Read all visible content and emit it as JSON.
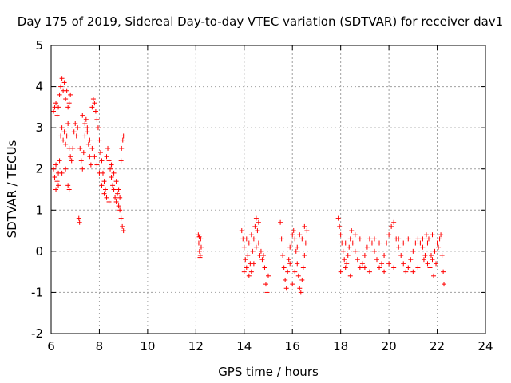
{
  "chart_data": {
    "type": "scatter",
    "title": "Day 175 of 2019, Sidereal Day-to-day VTEC variation (SDTVAR) for receiver dav1",
    "xlabel": "GPS time / hours",
    "ylabel": "SDTVAR / TECUs",
    "xlim": [
      6,
      24
    ],
    "ylim": [
      -2,
      5
    ],
    "xticks": [
      6,
      8,
      10,
      12,
      14,
      16,
      18,
      20,
      22,
      24
    ],
    "yticks": [
      -2,
      -1,
      0,
      1,
      2,
      3,
      4,
      5
    ],
    "xtick_labels": [
      "6",
      "8",
      "10",
      "12",
      "14",
      "16",
      "18",
      "20",
      "22",
      "24"
    ],
    "ytick_labels": [
      "-2",
      "-1",
      "0",
      "1",
      "2",
      "3",
      "4",
      "5"
    ],
    "grid": true,
    "marker": "+",
    "color": "#ff0000",
    "series": [
      {
        "name": "dav1",
        "points": [
          [
            6.1,
            3.4
          ],
          [
            6.15,
            3.5
          ],
          [
            6.2,
            3.6
          ],
          [
            6.25,
            3.3
          ],
          [
            6.3,
            3.5
          ],
          [
            6.35,
            3.8
          ],
          [
            6.4,
            4.0
          ],
          [
            6.45,
            4.2
          ],
          [
            6.5,
            3.9
          ],
          [
            6.55,
            4.1
          ],
          [
            6.6,
            3.7
          ],
          [
            6.65,
            3.9
          ],
          [
            6.7,
            3.5
          ],
          [
            6.75,
            3.6
          ],
          [
            6.8,
            3.8
          ],
          [
            6.1,
            2.0
          ],
          [
            6.15,
            1.8
          ],
          [
            6.2,
            2.1
          ],
          [
            6.25,
            1.7
          ],
          [
            6.3,
            1.9
          ],
          [
            6.35,
            2.2
          ],
          [
            6.4,
            2.8
          ],
          [
            6.45,
            3.0
          ],
          [
            6.5,
            2.7
          ],
          [
            6.55,
            2.9
          ],
          [
            6.6,
            2.6
          ],
          [
            6.65,
            2.8
          ],
          [
            6.7,
            3.1
          ],
          [
            6.75,
            2.5
          ],
          [
            6.8,
            2.3
          ],
          [
            6.2,
            1.5
          ],
          [
            6.3,
            1.6
          ],
          [
            6.45,
            1.9
          ],
          [
            6.6,
            2.0
          ],
          [
            6.7,
            1.6
          ],
          [
            6.75,
            1.5
          ],
          [
            6.85,
            2.2
          ],
          [
            6.9,
            2.5
          ],
          [
            6.95,
            2.9
          ],
          [
            7.0,
            3.1
          ],
          [
            7.05,
            2.8
          ],
          [
            7.1,
            3.0
          ],
          [
            7.15,
            0.8
          ],
          [
            7.18,
            0.7
          ],
          [
            7.2,
            2.5
          ],
          [
            7.25,
            2.2
          ],
          [
            7.3,
            2.0
          ],
          [
            7.35,
            2.4
          ],
          [
            7.4,
            2.8
          ],
          [
            7.45,
            3.2
          ],
          [
            7.5,
            3.0
          ],
          [
            7.55,
            2.6
          ],
          [
            7.6,
            2.3
          ],
          [
            7.65,
            2.1
          ],
          [
            7.7,
            3.5
          ],
          [
            7.75,
            3.7
          ],
          [
            7.8,
            3.6
          ],
          [
            7.85,
            3.4
          ],
          [
            7.9,
            3.2
          ],
          [
            7.95,
            3.0
          ],
          [
            8.0,
            2.7
          ],
          [
            8.05,
            2.4
          ],
          [
            8.1,
            2.2
          ],
          [
            8.15,
            1.9
          ],
          [
            8.2,
            1.7
          ],
          [
            8.25,
            1.5
          ],
          [
            7.3,
            3.3
          ],
          [
            7.4,
            3.1
          ],
          [
            7.5,
            2.9
          ],
          [
            7.6,
            2.7
          ],
          [
            7.7,
            2.5
          ],
          [
            7.8,
            2.3
          ],
          [
            7.9,
            2.1
          ],
          [
            8.0,
            1.9
          ],
          [
            8.1,
            1.6
          ],
          [
            8.2,
            1.4
          ],
          [
            8.3,
            1.3
          ],
          [
            8.4,
            1.2
          ],
          [
            8.3,
            2.3
          ],
          [
            8.35,
            2.5
          ],
          [
            8.4,
            2.2
          ],
          [
            8.45,
            2.0
          ],
          [
            8.5,
            1.8
          ],
          [
            8.55,
            1.6
          ],
          [
            8.6,
            1.5
          ],
          [
            8.65,
            1.3
          ],
          [
            8.7,
            1.2
          ],
          [
            8.75,
            1.4
          ],
          [
            8.8,
            1.1
          ],
          [
            8.85,
            1.0
          ],
          [
            8.5,
            2.1
          ],
          [
            8.6,
            1.9
          ],
          [
            8.7,
            1.7
          ],
          [
            8.8,
            1.5
          ],
          [
            8.85,
            1.3
          ],
          [
            8.9,
            0.8
          ],
          [
            8.95,
            0.6
          ],
          [
            9.0,
            0.5
          ],
          [
            8.92,
            2.5
          ],
          [
            8.97,
            2.7
          ],
          [
            9.0,
            2.8
          ],
          [
            8.9,
            2.2
          ],
          [
            12.1,
            0.4
          ],
          [
            12.12,
            0.2
          ],
          [
            12.15,
            0.0
          ],
          [
            12.18,
            -0.1
          ],
          [
            12.2,
            0.3
          ],
          [
            12.22,
            0.1
          ],
          [
            12.17,
            -0.15
          ],
          [
            12.14,
            0.35
          ],
          [
            13.9,
            0.5
          ],
          [
            13.95,
            0.3
          ],
          [
            14.0,
            0.1
          ],
          [
            14.05,
            -0.2
          ],
          [
            14.1,
            -0.4
          ],
          [
            14.15,
            -0.1
          ],
          [
            14.2,
            0.2
          ],
          [
            14.25,
            -0.3
          ],
          [
            14.3,
            -0.5
          ],
          [
            14.35,
            0.0
          ],
          [
            14.4,
            0.3
          ],
          [
            14.45,
            0.6
          ],
          [
            14.5,
            0.8
          ],
          [
            14.55,
            0.5
          ],
          [
            14.6,
            0.2
          ],
          [
            14.65,
            -0.1
          ],
          [
            14.7,
            0.0
          ],
          [
            14.75,
            -0.2
          ],
          [
            14.8,
            -0.1
          ],
          [
            14.85,
            -0.4
          ],
          [
            14.9,
            -0.8
          ],
          [
            14.95,
            -1.0
          ],
          [
            15.0,
            -0.6
          ],
          [
            14.0,
            -0.5
          ],
          [
            14.1,
            0.3
          ],
          [
            14.2,
            -0.6
          ],
          [
            14.3,
            0.4
          ],
          [
            14.4,
            -0.3
          ],
          [
            14.5,
            0.1
          ],
          [
            14.6,
            0.7
          ],
          [
            15.5,
            0.7
          ],
          [
            15.55,
            0.3
          ],
          [
            15.6,
            -0.1
          ],
          [
            15.65,
            -0.4
          ],
          [
            15.7,
            -0.7
          ],
          [
            15.75,
            -0.9
          ],
          [
            15.8,
            -0.5
          ],
          [
            15.85,
            -0.2
          ],
          [
            15.9,
            0.1
          ],
          [
            15.95,
            0.2
          ],
          [
            16.0,
            0.4
          ],
          [
            16.05,
            0.5
          ],
          [
            16.1,
            0.3
          ],
          [
            16.15,
            0.0
          ],
          [
            16.2,
            -0.3
          ],
          [
            16.25,
            -0.6
          ],
          [
            16.3,
            -0.9
          ],
          [
            16.35,
            -1.0
          ],
          [
            16.4,
            -0.7
          ],
          [
            16.45,
            -0.4
          ],
          [
            16.5,
            -0.1
          ],
          [
            16.55,
            0.2
          ],
          [
            16.6,
            0.5
          ],
          [
            16.5,
            0.6
          ],
          [
            16.4,
            0.3
          ],
          [
            16.3,
            0.4
          ],
          [
            16.2,
            0.1
          ],
          [
            16.1,
            -0.5
          ],
          [
            16.0,
            -0.8
          ],
          [
            15.9,
            -0.3
          ],
          [
            17.9,
            0.8
          ],
          [
            17.95,
            0.6
          ],
          [
            18.0,
            0.4
          ],
          [
            18.05,
            0.2
          ],
          [
            18.1,
            0.0
          ],
          [
            18.15,
            -0.2
          ],
          [
            18.2,
            -0.4
          ],
          [
            18.25,
            -0.3
          ],
          [
            18.3,
            -0.1
          ],
          [
            18.35,
            0.1
          ],
          [
            18.4,
            0.3
          ],
          [
            18.45,
            0.5
          ],
          [
            18.5,
            0.2
          ],
          [
            18.6,
            0.0
          ],
          [
            18.7,
            -0.2
          ],
          [
            18.8,
            -0.4
          ],
          [
            18.9,
            -0.3
          ],
          [
            19.0,
            -0.1
          ],
          [
            19.1,
            0.1
          ],
          [
            19.2,
            0.3
          ],
          [
            19.3,
            0.2
          ],
          [
            19.4,
            0.0
          ],
          [
            19.5,
            -0.2
          ],
          [
            19.6,
            -0.4
          ],
          [
            19.7,
            -0.3
          ],
          [
            19.8,
            -0.1
          ],
          [
            19.9,
            0.2
          ],
          [
            20.0,
            0.4
          ],
          [
            20.1,
            0.6
          ],
          [
            20.2,
            0.7
          ],
          [
            20.3,
            0.3
          ],
          [
            20.4,
            0.1
          ],
          [
            20.5,
            -0.1
          ],
          [
            20.6,
            -0.3
          ],
          [
            20.7,
            -0.5
          ],
          [
            20.8,
            -0.4
          ],
          [
            20.9,
            -0.2
          ],
          [
            21.0,
            0.0
          ],
          [
            21.1,
            0.2
          ],
          [
            21.2,
            0.3
          ],
          [
            21.3,
            0.2
          ],
          [
            21.4,
            0.1
          ],
          [
            21.5,
            -0.1
          ],
          [
            21.6,
            -0.3
          ],
          [
            21.7,
            -0.4
          ],
          [
            21.8,
            -0.2
          ],
          [
            21.9,
            0.0
          ],
          [
            22.0,
            0.2
          ],
          [
            22.1,
            0.3
          ],
          [
            22.2,
            -0.1
          ],
          [
            22.25,
            -0.5
          ],
          [
            22.28,
            -0.8
          ],
          [
            22.15,
            0.4
          ],
          [
            22.05,
            0.1
          ],
          [
            21.95,
            -0.3
          ],
          [
            21.85,
            -0.6
          ],
          [
            21.75,
            -0.1
          ],
          [
            21.65,
            0.3
          ],
          [
            21.55,
            0.4
          ],
          [
            21.45,
            -0.2
          ],
          [
            18.0,
            -0.5
          ],
          [
            18.2,
            0.2
          ],
          [
            18.4,
            -0.6
          ],
          [
            18.6,
            0.4
          ],
          [
            18.8,
            0.3
          ],
          [
            19.0,
            -0.4
          ],
          [
            19.2,
            -0.5
          ],
          [
            19.4,
            0.3
          ],
          [
            19.6,
            0.2
          ],
          [
            19.8,
            -0.5
          ],
          [
            20.0,
            -0.3
          ],
          [
            20.2,
            -0.4
          ],
          [
            20.4,
            0.3
          ],
          [
            20.6,
            0.2
          ],
          [
            20.8,
            0.3
          ],
          [
            21.0,
            -0.5
          ],
          [
            21.2,
            -0.4
          ],
          [
            21.4,
            0.3
          ],
          [
            21.6,
            0.2
          ],
          [
            21.8,
            0.4
          ]
        ]
      }
    ]
  }
}
